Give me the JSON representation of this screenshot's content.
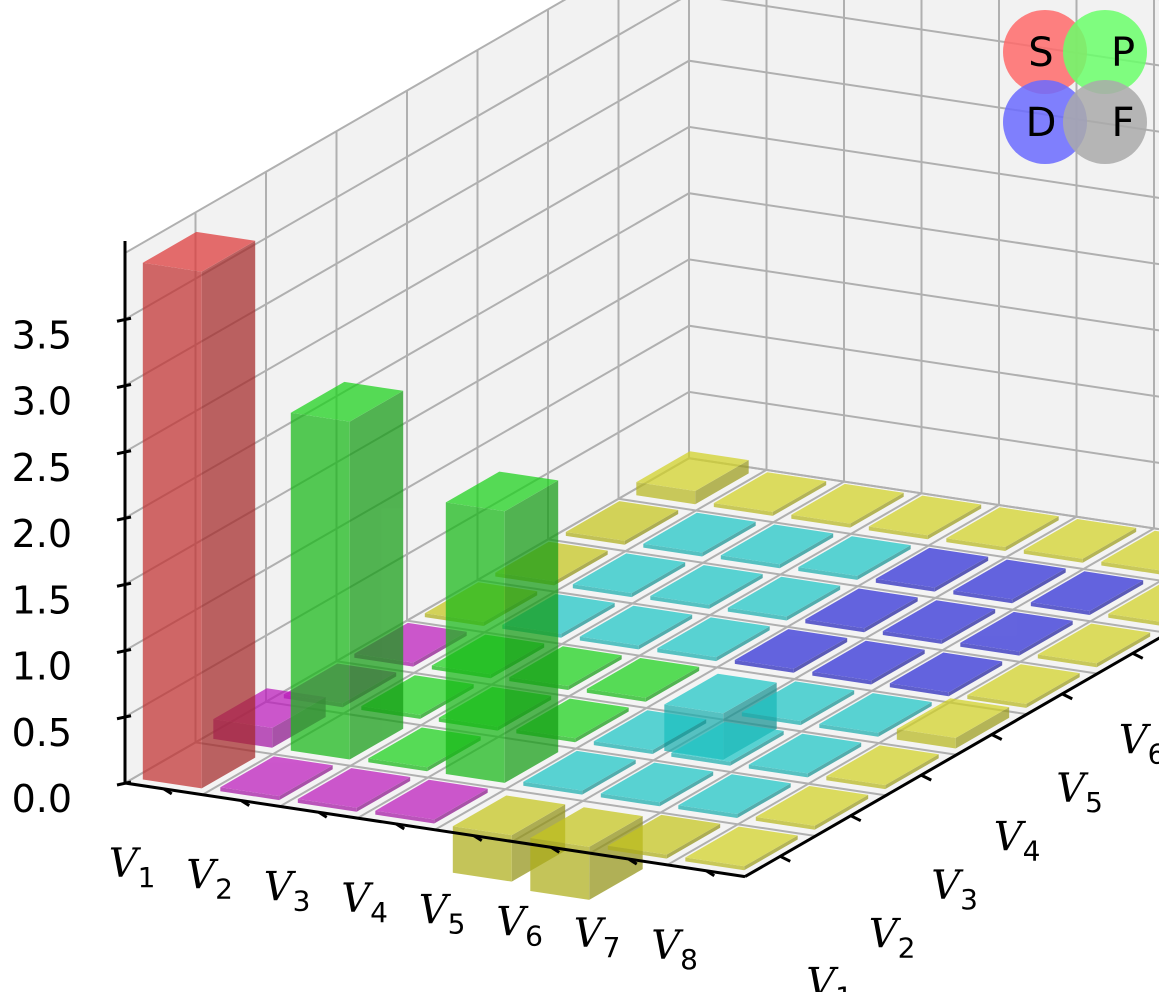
{
  "chart_data": {
    "type": "bar3d",
    "title": "",
    "row_labels": [
      "v1",
      "v2",
      "v3",
      "v4",
      "v5",
      "v6",
      "v7",
      "v8"
    ],
    "col_labels": [
      "v1",
      "v2",
      "v3",
      "v4",
      "v5",
      "v6",
      "v7",
      "v8"
    ],
    "zlim": [
      0,
      4.0
    ],
    "zticks": [
      "0.0",
      "0.5",
      "1.0",
      "1.5",
      "2.0",
      "2.5",
      "3.0",
      "3.5"
    ],
    "grid": true,
    "legend": {
      "placement": "top-right",
      "items": [
        {
          "label": "S",
          "color": "#ff6b6b"
        },
        {
          "label": "P",
          "color": "#6bff6b"
        },
        {
          "label": "D",
          "color": "#6b6bff"
        },
        {
          "label": "F",
          "color": "#aaaaaa"
        }
      ]
    },
    "orbital_blocks": {
      "S": [
        0
      ],
      "P": [
        1,
        2,
        3
      ],
      "D": [
        4,
        5,
        6
      ],
      "F": [
        7
      ]
    },
    "block_colors": {
      "SS": "#d33535",
      "PP": "#19c819",
      "DD": "#2a2acc",
      "FF": "#555555",
      "SP": "#b319b3",
      "SD": "#bdbd1c",
      "PD": "#1cbdbd",
      "OTHER": "#c8c823"
    },
    "bars": [
      {
        "row": 0,
        "col": 0,
        "value": 3.9
      },
      {
        "row": 1,
        "col": 1,
        "value": 2.55
      },
      {
        "row": 3,
        "col": 1,
        "value": 2.05
      },
      {
        "row": 0,
        "col": 1,
        "value": 0.15
      },
      {
        "row": 0,
        "col": 7,
        "value": 0.1
      },
      {
        "row": 4,
        "col": 0,
        "value": -0.35
      },
      {
        "row": 5,
        "col": 0,
        "value": -0.4
      },
      {
        "row": 4,
        "col": 3,
        "value": -0.35
      },
      {
        "row": 7,
        "col": 3,
        "value": 0.08
      },
      {
        "row": 7,
        "col": 7,
        "value": 0.05
      }
    ]
  }
}
